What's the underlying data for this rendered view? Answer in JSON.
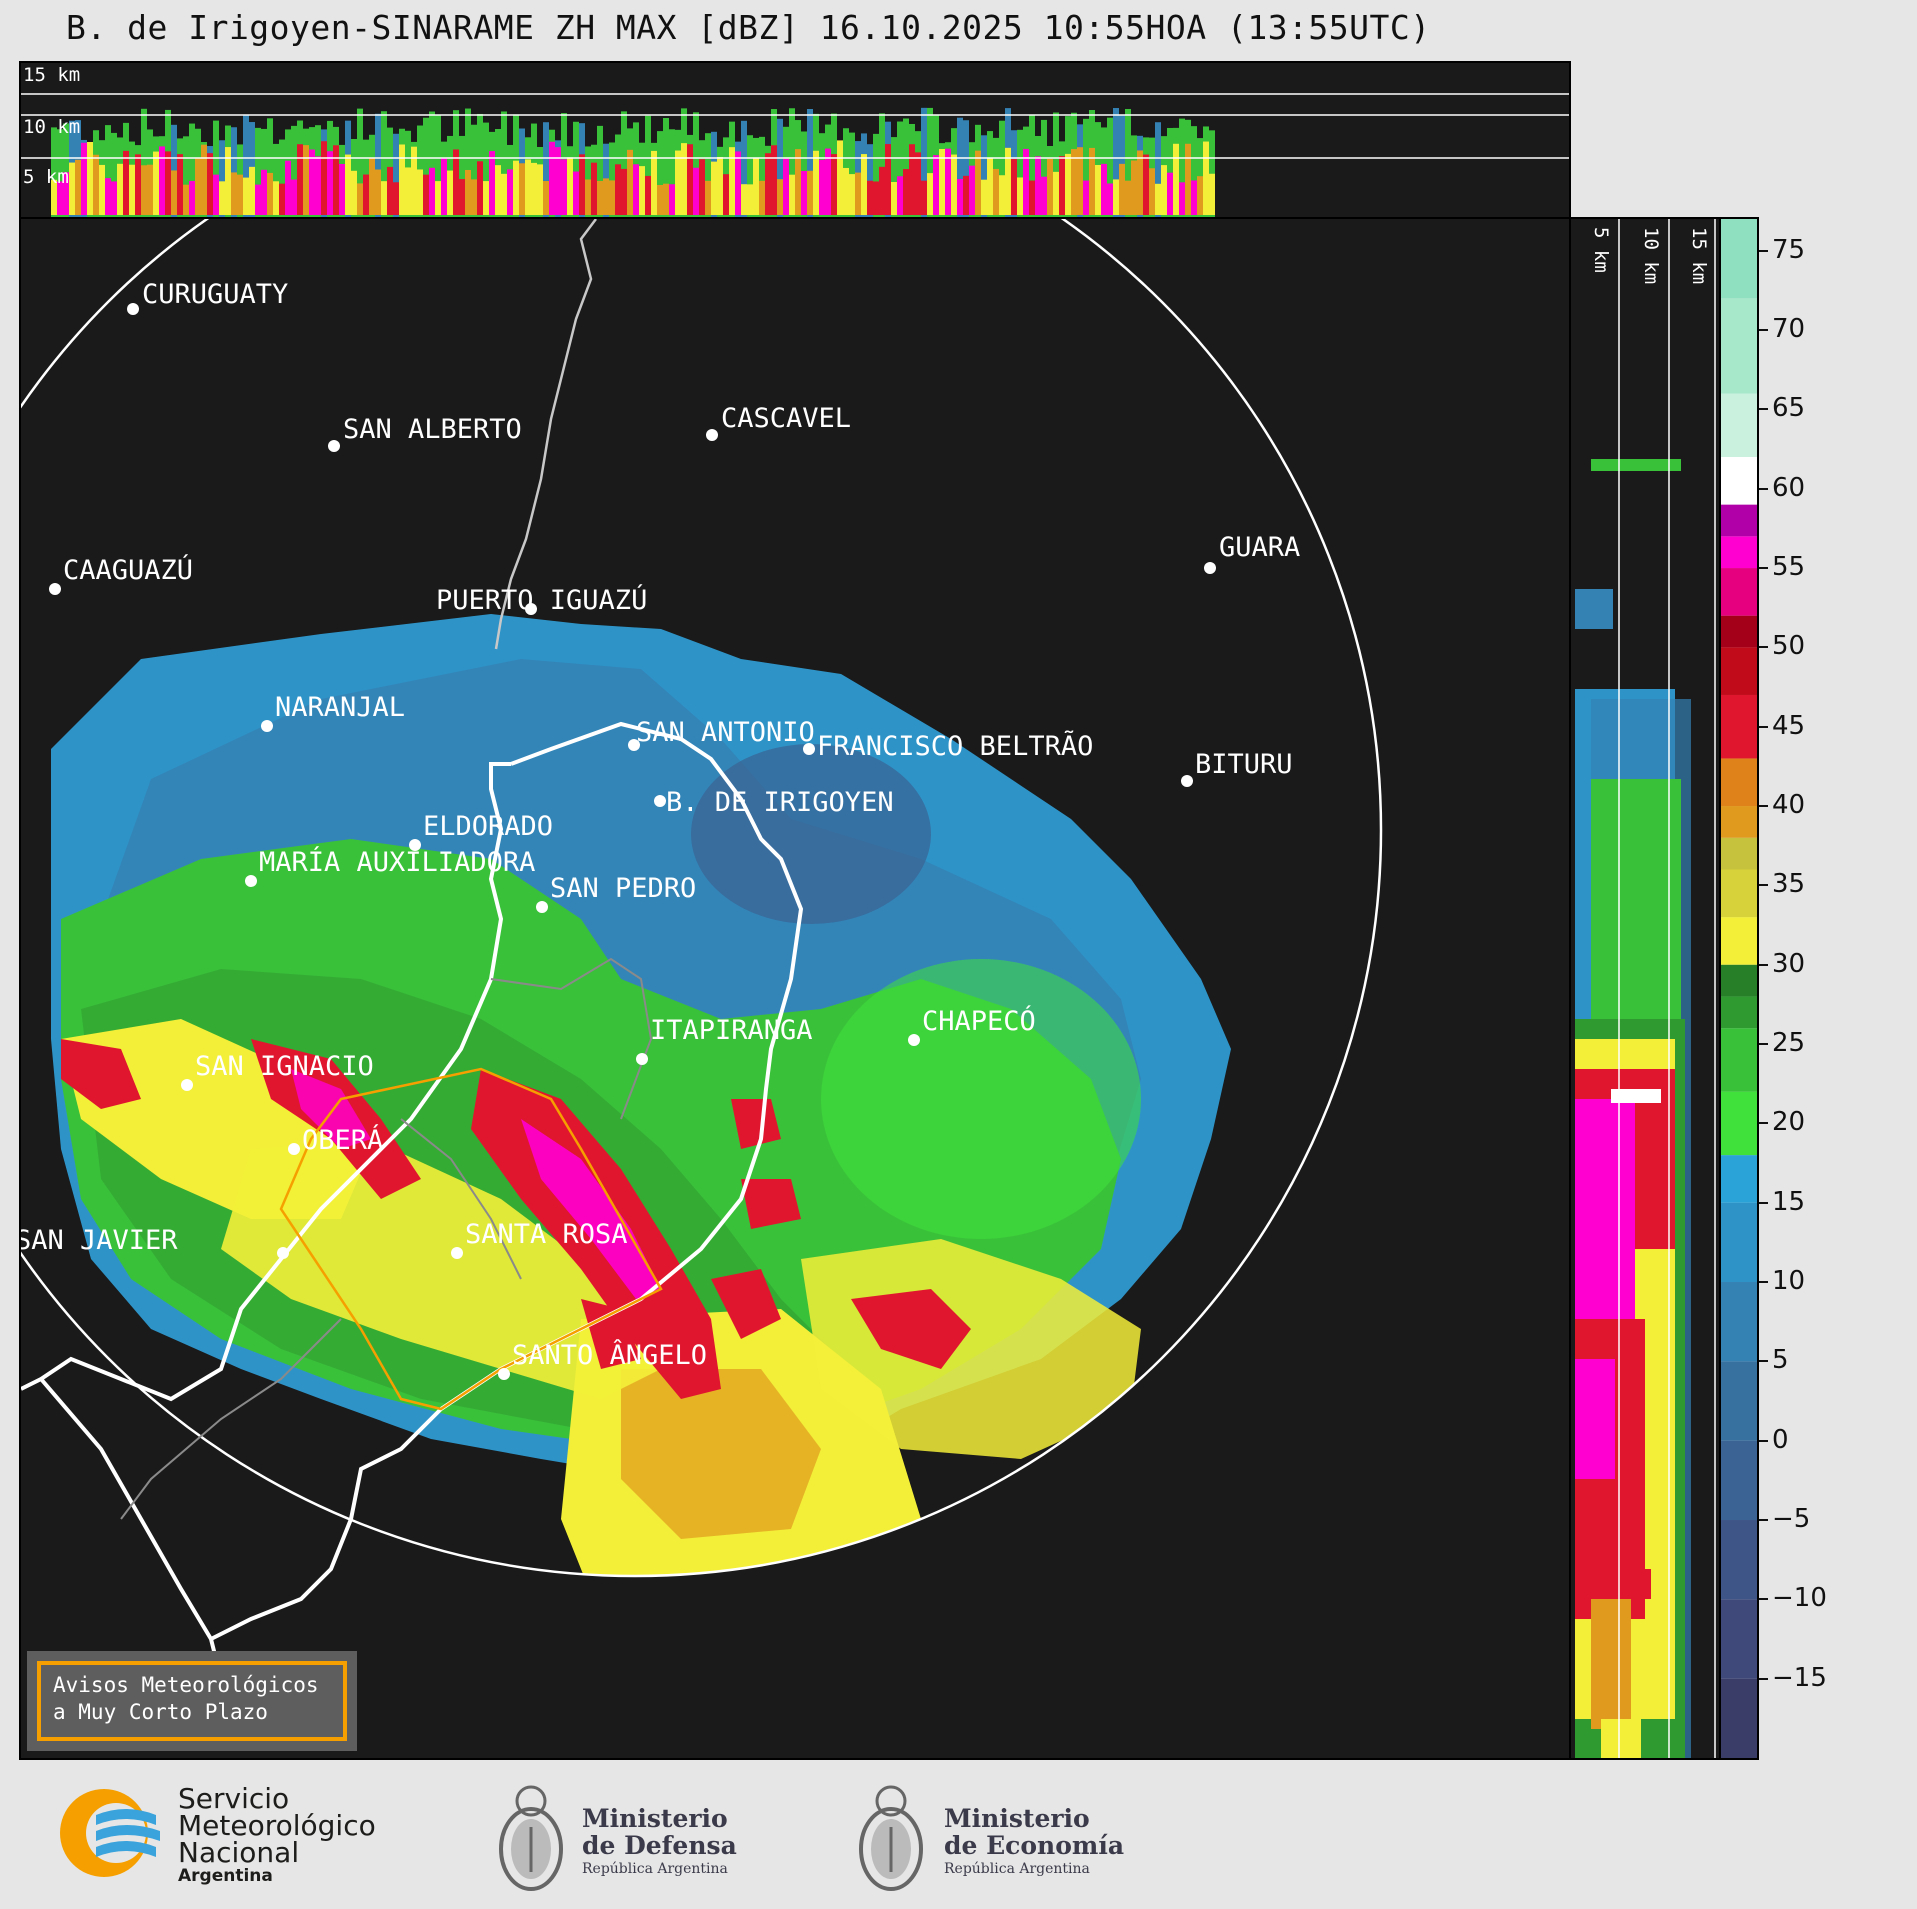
{
  "title": "B. de Irigoyen-SINARAME ZH MAX [dBZ] 16.10.2025 10:55HOA (13:55UTC)",
  "top_panel": {
    "height_labels": [
      "15 km",
      "10 km",
      "5 km"
    ]
  },
  "side_panel": {
    "height_labels": [
      "5 km",
      "10 km",
      "15 km"
    ]
  },
  "colorbar": {
    "unit": "dBZ",
    "ticks": [
      "75",
      "70",
      "65",
      "60",
      "55",
      "50",
      "45",
      "40",
      "35",
      "30",
      "25",
      "20",
      "15",
      "10",
      "5",
      "0",
      "−5",
      "−10",
      "−15"
    ],
    "range": [
      -20,
      77
    ],
    "colors": {
      "-20": "#3a3d68",
      "-15": "#404a7a",
      "-10": "#3e5587",
      "-5": "#3b6393",
      "0": "#37719f",
      "5": "#3481b4",
      "10": "#2e94c8",
      "15": "#2aa3d9",
      "18": "#3fe13a",
      "22": "#3ac13a",
      "26": "#2f9a2f",
      "28": "#277f27",
      "30": "#f3ef38",
      "33": "#d8d23a",
      "36": "#c6c23e",
      "38": "#e09a1e",
      "40": "#e0821a",
      "43": "#e0162e",
      "47": "#c20b1a",
      "50": "#a5001a",
      "52": "#e60080",
      "55": "#ff00d0",
      "57": "#b200a8",
      "59": "#ffffff",
      "62": "#c9f1dd",
      "66": "#a7e8cb",
      "72": "#8ee0c0"
    }
  },
  "cities": [
    {
      "name": "CURUGUATY"
    },
    {
      "name": "SAN ALBERTO"
    },
    {
      "name": "CASCAVEL"
    },
    {
      "name": "CAAGUAZÚ"
    },
    {
      "name": "GUARA"
    },
    {
      "name": "PUERTO IGUAZÚ"
    },
    {
      "name": "NARANJAL"
    },
    {
      "name": "SAN ANTONIO"
    },
    {
      "name": "FRANCISCO BELTRÃO"
    },
    {
      "name": "BITURU"
    },
    {
      "name": "B. DE IRIGOYEN"
    },
    {
      "name": "ELDORADO"
    },
    {
      "name": "MARÍA AUXILIADORA"
    },
    {
      "name": "SAN PEDRO"
    },
    {
      "name": "CHAPECÓ"
    },
    {
      "name": "ITAPIRANGA"
    },
    {
      "name": "SAN IGNACIO"
    },
    {
      "name": "OBERÁ"
    },
    {
      "name": "SAN JAVIER"
    },
    {
      "name": "SANTA ROSA"
    },
    {
      "name": "SANTO ÂNGELO"
    }
  ],
  "warning_box": {
    "line1": "Avisos Meteorológicos",
    "line2": "a Muy Corto Plazo",
    "border_color": "#f5a000"
  },
  "logos": {
    "smn": {
      "line1": "Servicio",
      "line2": "Meteorológico",
      "line3": "Nacional",
      "line4": "Argentina"
    },
    "defensa": {
      "line1": "Ministerio",
      "line2": "de Defensa",
      "line3": "República Argentina"
    },
    "economia": {
      "line1": "Ministerio",
      "line2": "de Economía",
      "line3": "República Argentina"
    }
  }
}
